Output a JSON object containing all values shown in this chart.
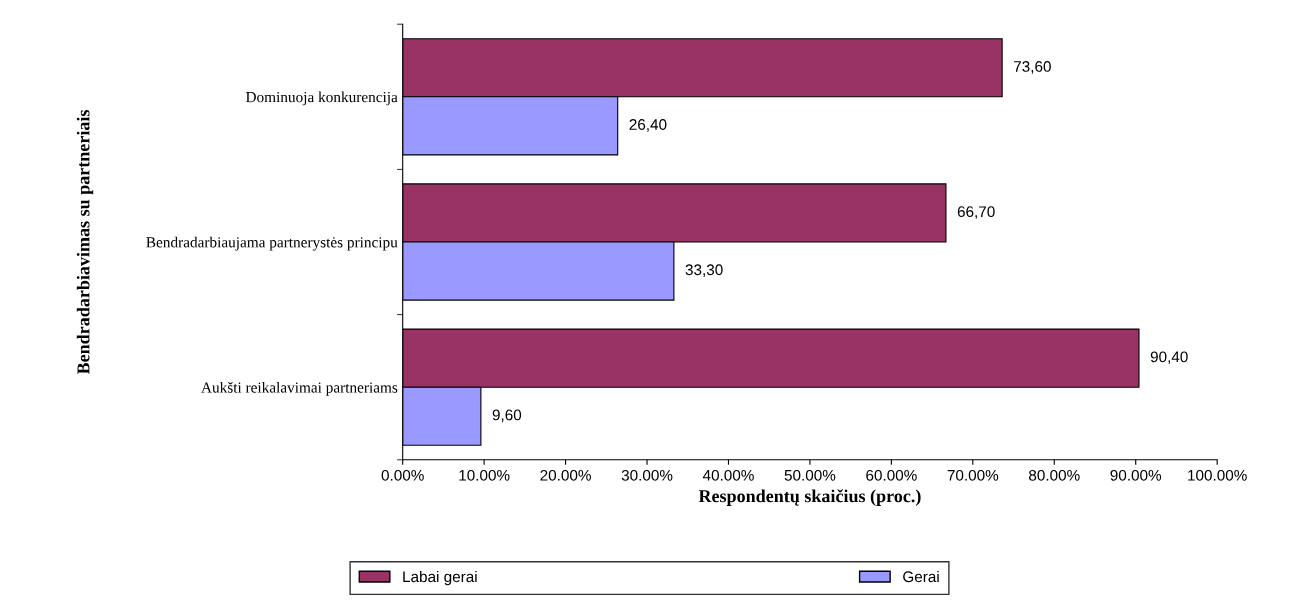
{
  "chart_data": {
    "type": "bar",
    "orientation": "horizontal",
    "categories": [
      "Dominuoja konkurencija",
      "Bendradarbiaujama partnerystės principu",
      "Aukšti reikalavimai partneriams"
    ],
    "series": [
      {
        "name": "Labai gerai",
        "color": "#993366",
        "values": [
          73.6,
          66.7,
          90.4
        ],
        "value_labels": [
          "73,60",
          "66,70",
          "90,40"
        ]
      },
      {
        "name": "Gerai",
        "color": "#9999ff",
        "values": [
          26.4,
          33.3,
          9.6
        ],
        "value_labels": [
          "26,40",
          "33,30",
          "9,60"
        ]
      }
    ],
    "xlabel": "Respondentų skaičius (proc.)",
    "ylabel": "Bendradarbiavimas su partneriais",
    "xlim": [
      0,
      100
    ],
    "xticks": [
      {
        "value": 0,
        "label": "0.00%"
      },
      {
        "value": 10,
        "label": "10.00%"
      },
      {
        "value": 20,
        "label": "20.00%"
      },
      {
        "value": 30,
        "label": "30.00%"
      },
      {
        "value": 40,
        "label": "40.00%"
      },
      {
        "value": 50,
        "label": "50.00%"
      },
      {
        "value": 60,
        "label": "60.00%"
      },
      {
        "value": 70,
        "label": "70.00%"
      },
      {
        "value": 80,
        "label": "80.00%"
      },
      {
        "value": 90,
        "label": "90.00%"
      },
      {
        "value": 100,
        "label": "100.00%"
      }
    ],
    "grid": false,
    "legend": "bottom"
  }
}
